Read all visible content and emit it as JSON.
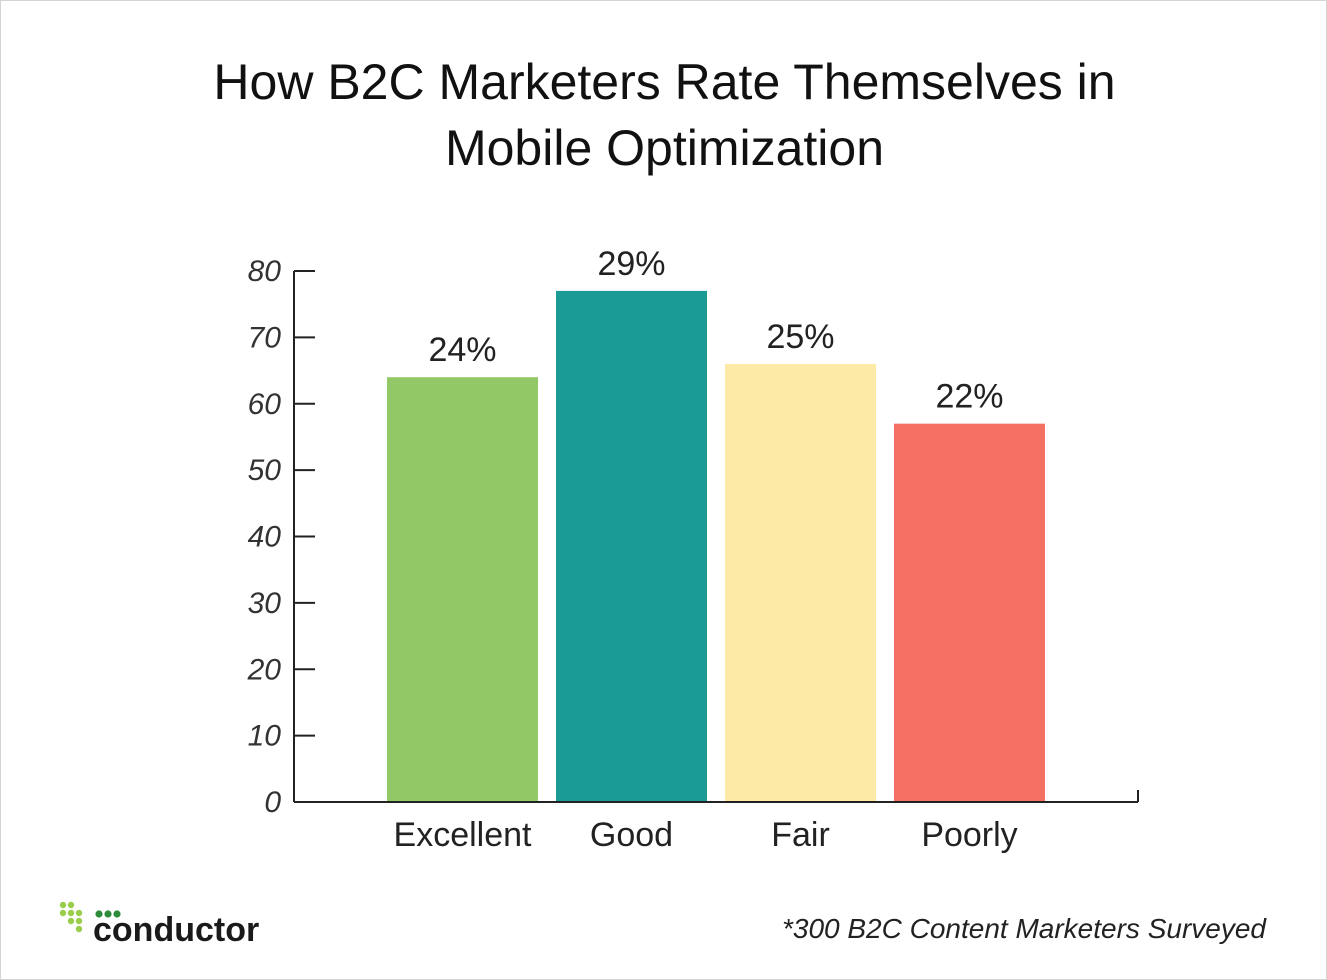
{
  "chart_data": {
    "type": "bar",
    "title": "How B2C Marketers Rate Themselves in Mobile Optimization",
    "title_lines": [
      "How B2C Marketers Rate Themselves in",
      "Mobile Optimization"
    ],
    "categories": [
      "Excellent",
      "Good",
      "Fair",
      "Poorly"
    ],
    "values": [
      64,
      77,
      66,
      57
    ],
    "data_labels": [
      "24%",
      "29%",
      "25%",
      "22%"
    ],
    "colors": [
      "#92c966",
      "#1a9b96",
      "#fdeaa7",
      "#f47063"
    ],
    "yticks": [
      "0",
      "10",
      "20",
      "30",
      "40",
      "50",
      "60",
      "70",
      "80"
    ],
    "ylim": [
      0,
      80
    ],
    "xlabel": "",
    "ylabel": "",
    "grid": false,
    "legend": "none"
  },
  "footnote": "*300 B2C Content Marketers Surveyed",
  "logo": {
    "name": "conductor",
    "dot_colors": [
      "#9acd4c",
      "#2e8b3a"
    ]
  }
}
